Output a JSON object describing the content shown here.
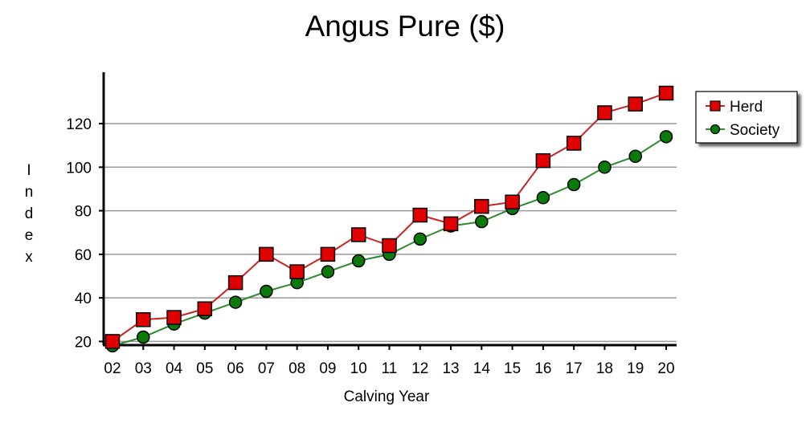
{
  "chart_data": {
    "type": "line",
    "title": "Angus Pure ($)",
    "xlabel": "Calving Year",
    "ylabel": "Index",
    "categories": [
      "02",
      "03",
      "04",
      "05",
      "06",
      "07",
      "08",
      "09",
      "10",
      "11",
      "12",
      "13",
      "14",
      "15",
      "16",
      "17",
      "18",
      "19",
      "20"
    ],
    "yticks": [
      20,
      40,
      60,
      80,
      100,
      120
    ],
    "ylim": [
      15,
      140
    ],
    "grid": true,
    "legend_position": "top-right",
    "series": [
      {
        "name": "Herd",
        "color": "#e00000",
        "line_color": "#cc2222",
        "marker": "square",
        "values": [
          20,
          30,
          31,
          35,
          47,
          60,
          52,
          60,
          69,
          64,
          78,
          74,
          82,
          84,
          103,
          111,
          125,
          129,
          134
        ]
      },
      {
        "name": "Society",
        "color": "#0a7a0a",
        "line_color": "#2e8b2e",
        "marker": "circle",
        "values": [
          18,
          22,
          28,
          33,
          38,
          43,
          47,
          52,
          57,
          60,
          67,
          73,
          75,
          81,
          86,
          92,
          100,
          105,
          114
        ]
      }
    ]
  }
}
